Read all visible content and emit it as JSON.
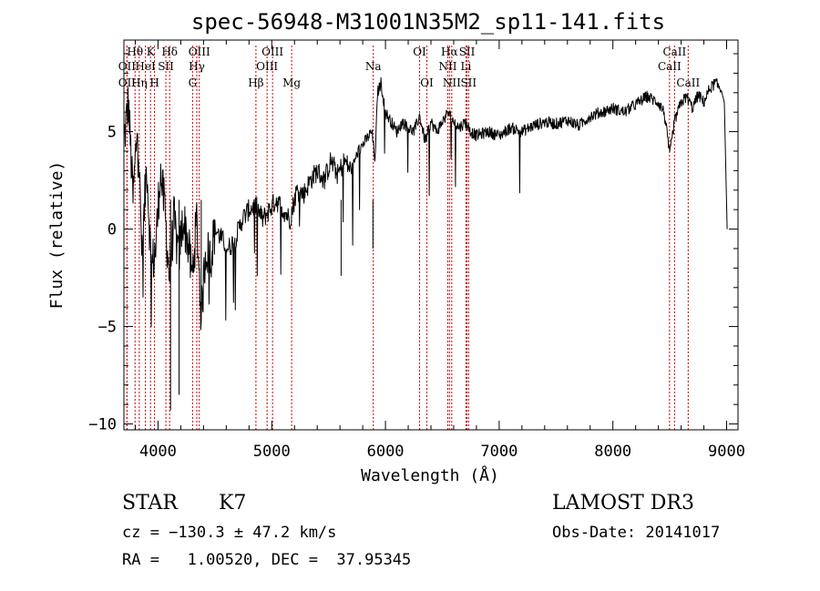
{
  "title": "spec-56948-M31001N35M2_sp11-141.fits",
  "chart_data": {
    "type": "line",
    "xlabel": "Wavelength (Å)",
    "ylabel": "Flux (relative)",
    "xlim": [
      3700,
      9100
    ],
    "ylim": [
      -10.3,
      9.7
    ],
    "x_ticks": [
      4000,
      5000,
      6000,
      7000,
      8000,
      9000
    ],
    "x_tick_labels": [
      "4000",
      "5000",
      "6000",
      "7000",
      "8000",
      "9000"
    ],
    "y_ticks": [
      -10,
      -5,
      0,
      5
    ],
    "y_tick_labels": [
      "−10",
      "−5",
      "0",
      "5"
    ],
    "series": [
      {
        "name": "spectrum",
        "x": [
          3700,
          3740,
          3780,
          3820,
          3860,
          3900,
          3940,
          3980,
          4020,
          4060,
          4100,
          4140,
          4180,
          4220,
          4260,
          4300,
          4340,
          4380,
          4420,
          4460,
          4500,
          4560,
          4620,
          4680,
          4740,
          4800,
          4860,
          4920,
          4980,
          5040,
          5100,
          5160,
          5220,
          5280,
          5340,
          5400,
          5460,
          5520,
          5580,
          5640,
          5700,
          5760,
          5820,
          5880,
          5910,
          5930,
          5960,
          6000,
          6050,
          6100,
          6150,
          6200,
          6250,
          6300,
          6350,
          6400,
          6450,
          6500,
          6550,
          6600,
          6650,
          6700,
          6750,
          6800,
          6900,
          7000,
          7100,
          7200,
          7300,
          7400,
          7500,
          7600,
          7700,
          7800,
          7900,
          8000,
          8100,
          8200,
          8300,
          8400,
          8450,
          8500,
          8540,
          8600,
          8650,
          8700,
          8750,
          8800,
          8850,
          8900,
          8950,
          8980,
          9000,
          9005
        ],
        "y": [
          4.5,
          6.5,
          1.5,
          5.5,
          -1.5,
          3.5,
          -2.0,
          -1.0,
          3.0,
          1.0,
          -2.5,
          0.5,
          -1.5,
          0.5,
          -0.5,
          -2.5,
          0.5,
          -4.5,
          -1.0,
          -1.5,
          0.0,
          -0.5,
          -1.0,
          -0.5,
          0.5,
          1.0,
          1.2,
          0.5,
          1.0,
          1.5,
          1.0,
          0.5,
          2.0,
          1.8,
          2.5,
          3.0,
          2.5,
          3.5,
          2.8,
          3.5,
          3.0,
          4.0,
          4.5,
          5.0,
          3.5,
          7.0,
          7.5,
          6.0,
          5.5,
          5.0,
          5.5,
          5.2,
          5.0,
          5.8,
          4.5,
          5.5,
          5.0,
          5.5,
          6.0,
          5.5,
          5.2,
          5.5,
          5.0,
          4.8,
          5.0,
          4.8,
          5.2,
          5.0,
          5.3,
          5.5,
          5.4,
          5.6,
          5.3,
          5.8,
          6.0,
          6.2,
          6.0,
          6.4,
          6.8,
          6.5,
          6.0,
          3.8,
          5.5,
          6.5,
          6.8,
          6.2,
          6.9,
          6.5,
          7.2,
          7.5,
          7.2,
          6.5,
          1.2,
          0.0
        ]
      }
    ],
    "emission_lines": [
      {
        "label": "Hθ",
        "wavelength": 3798,
        "row": 1
      },
      {
        "label": "Hη",
        "wavelength": 3835,
        "row": 3
      },
      {
        "label": "OII",
        "wavelength": 3727,
        "row": 2
      },
      {
        "label": "OII",
        "wavelength": 3727,
        "row": 3
      },
      {
        "label": "HeI",
        "wavelength": 3889,
        "row": 2
      },
      {
        "label": "K",
        "wavelength": 3934,
        "row": 1
      },
      {
        "label": "H",
        "wavelength": 3969,
        "row": 3
      },
      {
        "label": "SII",
        "wavelength": 4069,
        "row": 2
      },
      {
        "label": "Hδ",
        "wavelength": 4102,
        "row": 1
      },
      {
        "label": "OIII",
        "wavelength": 4363,
        "row": 1
      },
      {
        "label": "Hγ",
        "wavelength": 4341,
        "row": 2
      },
      {
        "label": "G",
        "wavelength": 4304,
        "row": 3
      },
      {
        "label": "Hβ",
        "wavelength": 4861,
        "row": 3
      },
      {
        "label": "OIII",
        "wavelength": 5007,
        "row": 1
      },
      {
        "label": "OIII",
        "wavelength": 4959,
        "row": 2
      },
      {
        "label": "Mg",
        "wavelength": 5175,
        "row": 3
      },
      {
        "label": "Na",
        "wavelength": 5893,
        "row": 2
      },
      {
        "label": "OI",
        "wavelength": 6300,
        "row": 1
      },
      {
        "label": "OI",
        "wavelength": 6364,
        "row": 3
      },
      {
        "label": "Hα",
        "wavelength": 6563,
        "row": 1
      },
      {
        "label": "NII",
        "wavelength": 6548,
        "row": 2
      },
      {
        "label": "NII",
        "wavelength": 6583,
        "row": 3
      },
      {
        "label": "SII",
        "wavelength": 6717,
        "row": 1
      },
      {
        "label": "Li",
        "wavelength": 6708,
        "row": 2
      },
      {
        "label": "SII",
        "wavelength": 6731,
        "row": 3
      },
      {
        "label": "CaII",
        "wavelength": 8542,
        "row": 1
      },
      {
        "label": "CaII",
        "wavelength": 8498,
        "row": 2
      },
      {
        "label": "CaII",
        "wavelength": 8662,
        "row": 3
      }
    ]
  },
  "info": {
    "object_class": "STAR",
    "subclass": "K7",
    "survey": "LAMOST DR3",
    "cz": "cz = −130.3 ± 47.2 km/s",
    "obs_date": "Obs-Date: 20141017",
    "coords": "RA =   1.00520, DEC =  37.95345"
  },
  "colors": {
    "line": "#000000",
    "marker": "#cc0000",
    "background": "#ffffff"
  }
}
